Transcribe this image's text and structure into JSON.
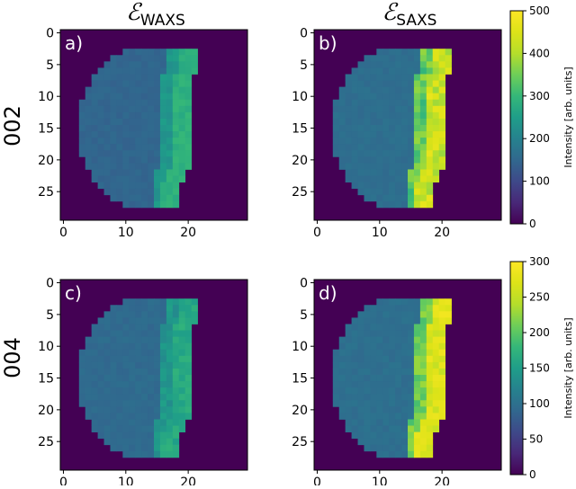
{
  "columns": [
    {
      "main": "ℰ",
      "sub": "WAXS"
    },
    {
      "main": "ℰ",
      "sub": "SAXS"
    }
  ],
  "rows": [
    "002",
    "004"
  ],
  "colorbar_label": "Intensity [arb. units]",
  "chart_data": [
    {
      "type": "heatmap",
      "panel": "a)",
      "row_label": "002",
      "column_label": "WAXS",
      "grid": [
        30,
        30
      ],
      "x_ticks": [
        0,
        10,
        20
      ],
      "y_ticks": [
        0,
        5,
        10,
        15,
        20,
        25
      ],
      "clim": [
        0,
        500
      ],
      "fill_outside": 0,
      "body_value": 150,
      "edge_value": 270,
      "edge_peak": 300
    },
    {
      "type": "heatmap",
      "panel": "b)",
      "row_label": "002",
      "column_label": "SAXS",
      "grid": [
        30,
        30
      ],
      "x_ticks": [
        0,
        10,
        20
      ],
      "y_ticks": [
        0,
        5,
        10,
        15,
        20,
        25
      ],
      "clim": [
        0,
        500
      ],
      "fill_outside": 0,
      "body_value": 165,
      "edge_value": 380,
      "edge_peak": 470,
      "colorbar": {
        "ticks": [
          0,
          100,
          200,
          300,
          400,
          500
        ],
        "label": "Intensity [arb. units]"
      }
    },
    {
      "type": "heatmap",
      "panel": "c)",
      "row_label": "004",
      "column_label": "WAXS",
      "grid": [
        30,
        30
      ],
      "x_ticks": [
        0,
        10,
        20
      ],
      "y_ticks": [
        0,
        5,
        10,
        15,
        20,
        25
      ],
      "clim": [
        0,
        300
      ],
      "fill_outside": 0,
      "body_value": 95,
      "edge_value": 150,
      "edge_peak": 175
    },
    {
      "type": "heatmap",
      "panel": "d)",
      "row_label": "004",
      "column_label": "SAXS",
      "grid": [
        30,
        30
      ],
      "x_ticks": [
        0,
        10,
        20
      ],
      "y_ticks": [
        0,
        5,
        10,
        15,
        20,
        25
      ],
      "clim": [
        0,
        300
      ],
      "fill_outside": 0,
      "body_value": 100,
      "edge_value": 250,
      "edge_peak": 290,
      "colorbar": {
        "ticks": [
          0,
          50,
          100,
          150,
          200,
          250,
          300
        ],
        "label": "Intensity [arb. units]"
      }
    }
  ]
}
